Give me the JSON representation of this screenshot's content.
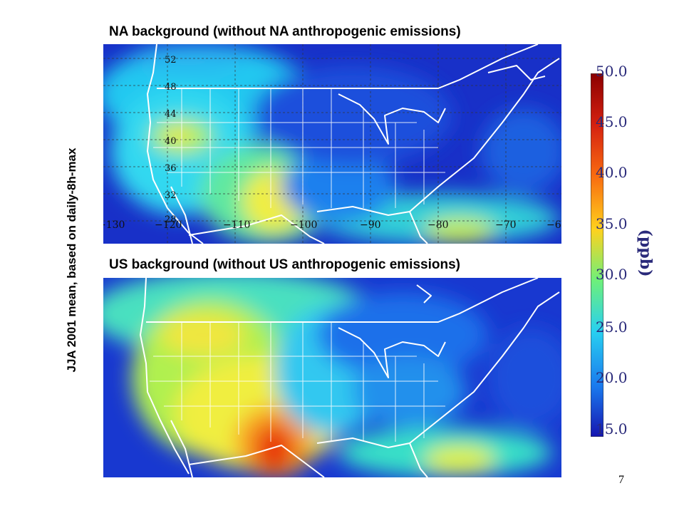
{
  "panels": {
    "top_title": "NA background (without NA anthropogenic emissions)",
    "bottom_title": "US background (without US anthropogenic emissions)"
  },
  "side_label": "JJA 2001 mean, based on daily-8h-max",
  "map_axes": {
    "lat_labels": [
      "52",
      "48",
      "44",
      "40",
      "36",
      "32",
      "28"
    ],
    "lon_labels": [
      "−130",
      "−120",
      "−110",
      "−100",
      "−90",
      "−80",
      "−70",
      "−6"
    ]
  },
  "colorbar": {
    "ticks": [
      "50.0",
      "45.0",
      "40.0",
      "35.0",
      "30.0",
      "25.0",
      "20.0",
      "15.0"
    ],
    "unit": "(ppb)",
    "colors": [
      "#8b0000",
      "#d42010",
      "#f86a10",
      "#ffd21e",
      "#6ef07a",
      "#28d0f0",
      "#1a7aee",
      "#1515b0"
    ]
  },
  "page_number": "7"
}
